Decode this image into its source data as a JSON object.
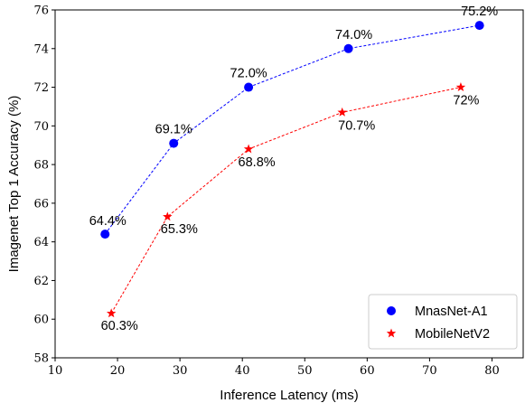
{
  "chart_data": {
    "type": "line",
    "xlabel": "Inference Latency (ms)",
    "ylabel": "Imagenet Top 1 Accuracy (%)",
    "xlim": [
      10,
      85
    ],
    "ylim": [
      58,
      76
    ],
    "xticks": [
      10,
      20,
      30,
      40,
      50,
      60,
      70,
      80
    ],
    "yticks": [
      58,
      60,
      62,
      64,
      66,
      68,
      70,
      72,
      74,
      76
    ],
    "grid": false,
    "legend_position": "bottom-right",
    "series": [
      {
        "name": "MnasNet-A1",
        "color": "#0000ff",
        "marker": "circle",
        "points": [
          {
            "x": 18,
            "y": 64.4,
            "label": "64.4%"
          },
          {
            "x": 29,
            "y": 69.1,
            "label": "69.1%"
          },
          {
            "x": 41,
            "y": 72.0,
            "label": "72.0%"
          },
          {
            "x": 57,
            "y": 74.0,
            "label": "74.0%"
          },
          {
            "x": 78,
            "y": 75.2,
            "label": "75.2%"
          }
        ]
      },
      {
        "name": "MobileNetV2",
        "color": "#ff0000",
        "marker": "star",
        "points": [
          {
            "x": 19,
            "y": 60.3,
            "label": "60.3%"
          },
          {
            "x": 28,
            "y": 65.3,
            "label": "65.3%"
          },
          {
            "x": 41,
            "y": 68.8,
            "label": "68.8%"
          },
          {
            "x": 56,
            "y": 70.7,
            "label": "70.7%"
          },
          {
            "x": 75,
            "y": 72.0,
            "label": "72%"
          }
        ]
      }
    ]
  }
}
